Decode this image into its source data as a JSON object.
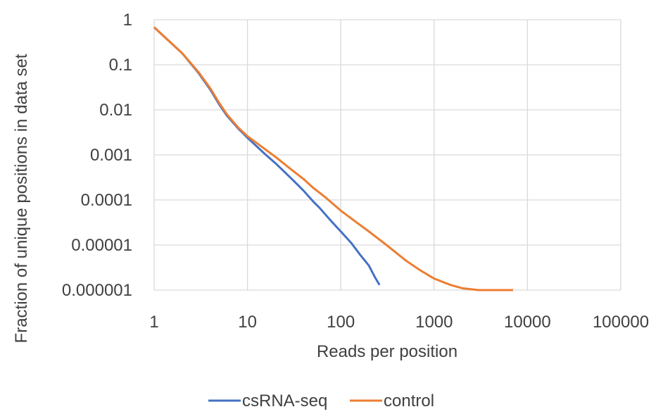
{
  "chart_data": {
    "type": "line",
    "xlabel": "Reads per position",
    "ylabel": "Fraction of unique positions in data set",
    "x_scale": "log",
    "y_scale": "log",
    "xlim": [
      1,
      100000
    ],
    "ylim": [
      1e-06,
      1
    ],
    "x_ticks": [
      "1",
      "10",
      "100",
      "1000",
      "10000",
      "100000"
    ],
    "y_ticks": [
      "1",
      "0.1",
      "0.01",
      "0.001",
      "0.0001",
      "0.00001",
      "0.000001"
    ],
    "grid": true,
    "legend_position": "bottom",
    "series": [
      {
        "name": "csRNA-seq",
        "color": "#4472c4",
        "x": [
          1,
          2,
          3,
          4,
          5,
          6,
          7,
          8,
          9,
          10,
          15,
          20,
          30,
          40,
          50,
          60,
          70,
          80,
          100,
          130,
          160,
          200,
          230,
          260
        ],
        "y": [
          0.68,
          0.18,
          0.065,
          0.028,
          0.013,
          0.0075,
          0.0052,
          0.0038,
          0.003,
          0.0024,
          0.0011,
          0.00065,
          0.00029,
          0.00016,
          9.5e-05,
          6.5e-05,
          4.5e-05,
          3.3e-05,
          2e-05,
          1.1e-05,
          6.2e-06,
          3.5e-06,
          2e-06,
          1.3e-06
        ]
      },
      {
        "name": "control",
        "color": "#ed7d31",
        "x": [
          1,
          2,
          3,
          4,
          5,
          6,
          7,
          8,
          9,
          10,
          15,
          20,
          30,
          40,
          50,
          70,
          100,
          150,
          200,
          300,
          500,
          700,
          1000,
          1500,
          2000,
          3000,
          5000,
          7000
        ],
        "y": [
          0.68,
          0.18,
          0.068,
          0.03,
          0.014,
          0.008,
          0.0055,
          0.004,
          0.0032,
          0.0026,
          0.0014,
          0.0009,
          0.00046,
          0.00029,
          0.00019,
          0.00011,
          5.8e-05,
          3.1e-05,
          2e-05,
          1.05e-05,
          4.5e-06,
          2.8e-06,
          1.8e-06,
          1.3e-06,
          1.1e-06,
          1e-06,
          1e-06,
          1e-06
        ]
      }
    ]
  }
}
